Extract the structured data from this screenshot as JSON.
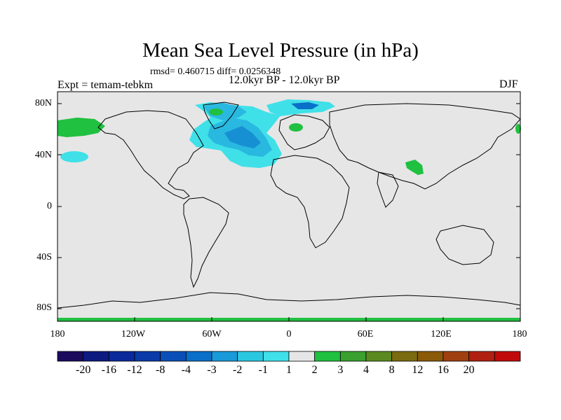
{
  "title": "Mean Sea Level Pressure (in hPa)",
  "stats": "rmsd= 0.460715 diff= 0.0256348",
  "subtitle": "12.0kyr BP - 12.0kyr BP",
  "experiment": "Expt = temam-tebkm",
  "season": "DJF",
  "lat_labels": [
    "80N",
    "40N",
    "0",
    "40S",
    "80S"
  ],
  "lon_labels": [
    "180",
    "120W",
    "60W",
    "0",
    "60E",
    "120E",
    "180"
  ],
  "colorbar": {
    "labels": [
      "-20",
      "-16",
      "-12",
      "-8",
      "-4",
      "-3",
      "-2",
      "-1",
      "1",
      "2",
      "3",
      "4",
      "8",
      "12",
      "16",
      "20"
    ],
    "colors": [
      "#1a0a5e",
      "#0d1a80",
      "#0a2a9a",
      "#0a3aa8",
      "#0a4fb8",
      "#0a6fc8",
      "#1a9ad8",
      "#2ac8e0",
      "#40e0e8",
      "#e6e6e6",
      "#20c040",
      "#3aa030",
      "#5a8a20",
      "#7a6a10",
      "#8a5a08",
      "#a04010",
      "#b02010",
      "#c00a0a"
    ]
  },
  "colors": {
    "land_ocean": "#e6e6e6",
    "light_blue": "#40e0e8",
    "mid_blue": "#29b8e0",
    "dark_blue": "#0a6fc8",
    "green": "#20c040"
  }
}
